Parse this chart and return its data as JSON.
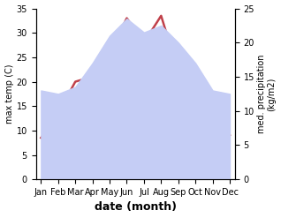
{
  "months": [
    "Jan",
    "Feb",
    "Mar",
    "Apr",
    "May",
    "Jun",
    "Jul",
    "Aug",
    "Sep",
    "Oct",
    "Nov",
    "Dec"
  ],
  "temp": [
    8.5,
    13.5,
    20.0,
    21.0,
    26.0,
    33.0,
    28.0,
    33.5,
    22.0,
    15.0,
    11.0,
    9.0
  ],
  "precip": [
    13.0,
    12.5,
    13.5,
    17.0,
    21.0,
    23.5,
    21.5,
    22.5,
    20.0,
    17.0,
    13.0,
    12.5
  ],
  "temp_color": "#c0404a",
  "precip_fill_color": "#c5cdf5",
  "temp_ylim": [
    0,
    35
  ],
  "precip_ylim": [
    0,
    25
  ],
  "temp_yticks": [
    0,
    5,
    10,
    15,
    20,
    25,
    30,
    35
  ],
  "precip_yticks": [
    0,
    5,
    10,
    15,
    20,
    25
  ],
  "xlabel": "date (month)",
  "ylabel_left": "max temp (C)",
  "ylabel_right": "med. precipitation\n(kg/m2)",
  "label_fontsize": 8,
  "tick_fontsize": 7,
  "line_width": 1.8
}
